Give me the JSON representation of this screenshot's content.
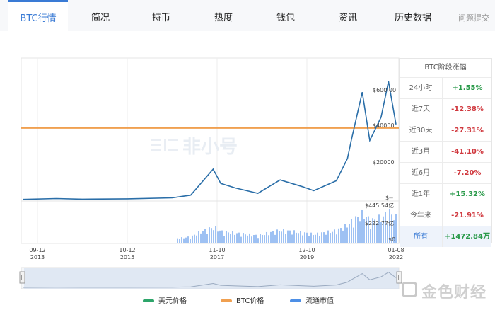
{
  "tabs": [
    {
      "label": "BTC行情",
      "active": true
    },
    {
      "label": "简况"
    },
    {
      "label": "持币"
    },
    {
      "label": "热度"
    },
    {
      "label": "钱包"
    },
    {
      "label": "资讯"
    },
    {
      "label": "历史数据"
    },
    {
      "label": "问题提交",
      "faded": true
    }
  ],
  "chart": {
    "watermark": "非小号",
    "price_ticks": [
      "$600.00",
      "$40000",
      "$20000",
      "$--"
    ],
    "volume_ticks": [
      "$445.54亿",
      "$222.77亿",
      "$0"
    ],
    "x_labels": [
      {
        "date": "09-12",
        "year": "2013"
      },
      {
        "date": "10-12",
        "year": "2015"
      },
      {
        "date": "11-10",
        "year": "2017"
      },
      {
        "date": "12-10",
        "year": "2019"
      },
      {
        "date": "01-08",
        "year": "2022"
      }
    ],
    "btc_price_line_level_usd": 40000,
    "colors": {
      "usd_price": "#2a6ea8",
      "btc_price": "#f0a050",
      "market_cap": "#4d8fe6",
      "volume": "#9ec1f3"
    }
  },
  "chart_data": {
    "type": "line",
    "x": [
      "2013-09",
      "2014-06",
      "2015-01",
      "2016-01",
      "2017-01",
      "2017-06",
      "2017-12",
      "2018-02",
      "2018-06",
      "2018-12",
      "2019-06",
      "2019-12",
      "2020-03",
      "2020-09",
      "2020-12",
      "2021-01",
      "2021-04",
      "2021-06",
      "2021-09",
      "2021-11",
      "2022-01"
    ],
    "series": [
      {
        "name": "美元价格",
        "values": [
          130,
          600,
          250,
          420,
          1000,
          2500,
          17000,
          9000,
          6500,
          3500,
          11000,
          7200,
          5000,
          10500,
          23000,
          33000,
          60000,
          33000,
          46000,
          66000,
          42000
        ]
      }
    ],
    "reference_line": {
      "name": "BTC价格",
      "value": 40000
    },
    "y_ticks": [
      "$20000",
      "$40000",
      "$600.00"
    ]
  },
  "stats": {
    "title": "BTC阶段涨幅",
    "rows": [
      {
        "label": "24小时",
        "value": "+1.55%",
        "color": "#2a9a4a"
      },
      {
        "label": "近7天",
        "value": "-12.38%",
        "color": "#d0383e"
      },
      {
        "label": "近30天",
        "value": "-27.31%",
        "color": "#d0383e"
      },
      {
        "label": "近3月",
        "value": "-41.10%",
        "color": "#d0383e"
      },
      {
        "label": "近6月",
        "value": "-7.20%",
        "color": "#d0383e"
      },
      {
        "label": "近1年",
        "value": "+15.32%",
        "color": "#2a9a4a"
      },
      {
        "label": "今年来",
        "value": "-21.91%",
        "color": "#d0383e"
      },
      {
        "label": "所有",
        "value": "+1472.84万",
        "color": "#2a9a4a"
      }
    ]
  },
  "legend": [
    {
      "label": "美元价格",
      "color": "#2da56a"
    },
    {
      "label": "BTC价格",
      "color": "#f0a050"
    },
    {
      "label": "流通市值",
      "color": "#4d8fe6"
    }
  ],
  "brand": {
    "logo_text": "金色财经"
  }
}
